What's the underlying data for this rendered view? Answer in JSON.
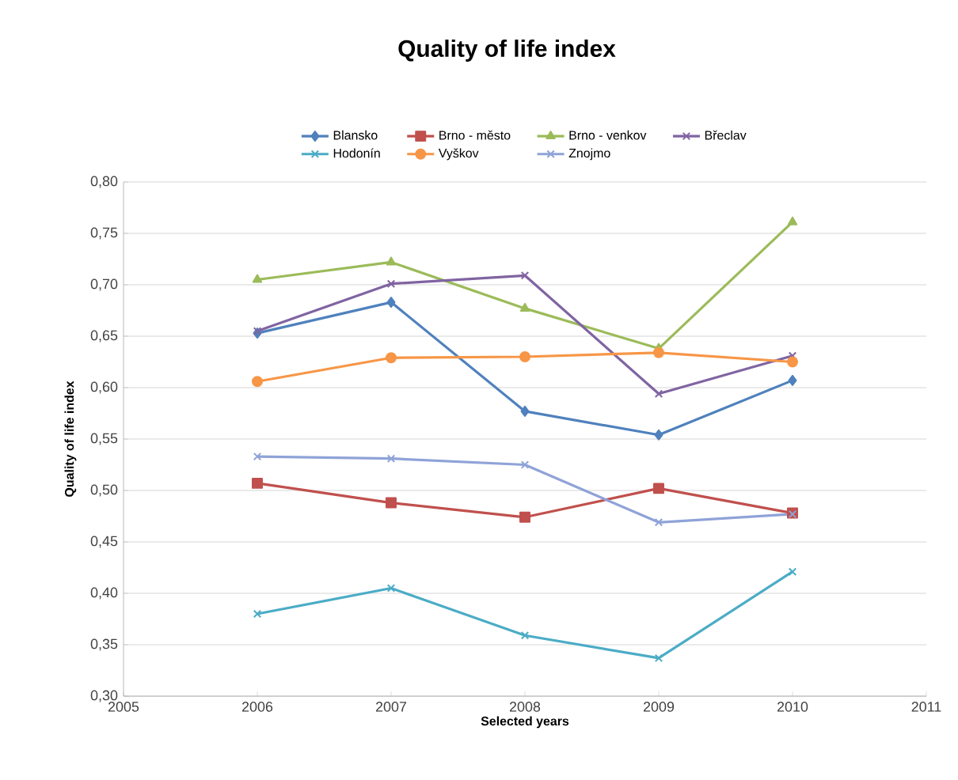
{
  "chart_data": {
    "type": "line",
    "title": "Quality of life index",
    "xlabel": "Selected years",
    "ylabel": "Quality of life index",
    "x": [
      2006,
      2007,
      2008,
      2009,
      2010
    ],
    "xlim": [
      2005,
      2011
    ],
    "xticks": [
      2005,
      2006,
      2007,
      2008,
      2009,
      2010,
      2011
    ],
    "ylim": [
      0.3,
      0.8
    ],
    "yticks": [
      {
        "value": 0.3,
        "label": "0,30"
      },
      {
        "value": 0.35,
        "label": "0,35"
      },
      {
        "value": 0.4,
        "label": "0,40"
      },
      {
        "value": 0.45,
        "label": "0,45"
      },
      {
        "value": 0.5,
        "label": "0,50"
      },
      {
        "value": 0.55,
        "label": "0,55"
      },
      {
        "value": 0.6,
        "label": "0,60"
      },
      {
        "value": 0.65,
        "label": "0,65"
      },
      {
        "value": 0.7,
        "label": "0,70"
      },
      {
        "value": 0.75,
        "label": "0,75"
      },
      {
        "value": 0.8,
        "label": "0,80"
      }
    ],
    "grid": "y",
    "legend": "top",
    "series": [
      {
        "name": "Blansko",
        "color": "#4f81bd",
        "marker": "diamond",
        "values": [
          0.653,
          0.683,
          0.577,
          0.554,
          0.607
        ]
      },
      {
        "name": "Brno - město",
        "color": "#c0504d",
        "marker": "square",
        "values": [
          0.507,
          0.488,
          0.474,
          0.502,
          0.478
        ]
      },
      {
        "name": "Brno - venkov",
        "color": "#9bbb59",
        "marker": "triangle",
        "values": [
          0.705,
          0.722,
          0.677,
          0.638,
          0.761
        ]
      },
      {
        "name": "Břeclav",
        "color": "#8064a2",
        "marker": "cross",
        "values": [
          0.655,
          0.701,
          0.709,
          0.594,
          0.631
        ]
      },
      {
        "name": "Hodonín",
        "color": "#4bacc6",
        "marker": "cross",
        "values": [
          0.38,
          0.405,
          0.359,
          0.337,
          0.421
        ]
      },
      {
        "name": "Vyškov",
        "color": "#f79646",
        "marker": "circle",
        "values": [
          0.606,
          0.629,
          0.63,
          0.634,
          0.625
        ]
      },
      {
        "name": "Znojmo",
        "color": "#8fa3d8",
        "marker": "cross",
        "values": [
          0.533,
          0.531,
          0.525,
          0.469,
          0.477
        ]
      }
    ]
  }
}
